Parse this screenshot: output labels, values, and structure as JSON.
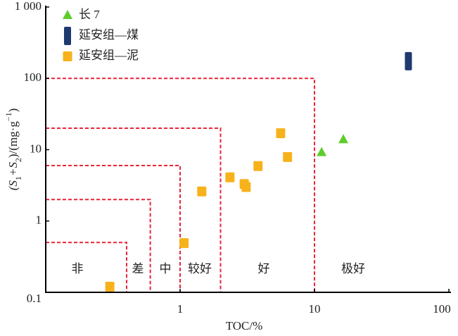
{
  "chart_data": {
    "type": "scatter",
    "x_label": "TOC/%",
    "y_label_parts": [
      "(S",
      "1",
      "+S",
      "2",
      ")/(mg·g",
      "−1",
      ")"
    ],
    "xlim": [
      0.1,
      100
    ],
    "ylim": [
      0.1,
      1000
    ],
    "log_x": true,
    "log_y": true,
    "xticks": [
      1,
      10,
      100
    ],
    "yticks": [
      0.1,
      1,
      10,
      100,
      {
        "value": 1000,
        "label": "1 000"
      }
    ],
    "boundaries": [
      {
        "x": 0.4,
        "y": 0.5
      },
      {
        "x": 0.6,
        "y": 2
      },
      {
        "x": 1,
        "y": 6
      },
      {
        "x": 2,
        "y": 20
      },
      {
        "x": 10,
        "y": 100
      }
    ],
    "classes": [
      "非",
      "差",
      "中",
      "较好",
      "好",
      "极好"
    ],
    "legend": "upper left",
    "series": [
      {
        "name": "长 7",
        "color": "#5fcc2e",
        "marker": "triangle",
        "x": [
          11.3,
          16.4
        ],
        "values": [
          9.1,
          13.8
        ]
      },
      {
        "name": "延安组—煤",
        "color": "#1f3a6e",
        "marker": "bar",
        "x": [
          50
        ],
        "values": [
          174
        ]
      },
      {
        "name": "延安组—泥",
        "color": "#f7b21b",
        "marker": "square",
        "x": [
          0.3,
          1.07,
          1.45,
          2.35,
          3.0,
          3.1,
          3.8,
          5.6,
          6.3
        ],
        "values": [
          0.12,
          0.49,
          2.6,
          4.1,
          3.3,
          3.0,
          5.9,
          17,
          7.9
        ]
      }
    ]
  }
}
